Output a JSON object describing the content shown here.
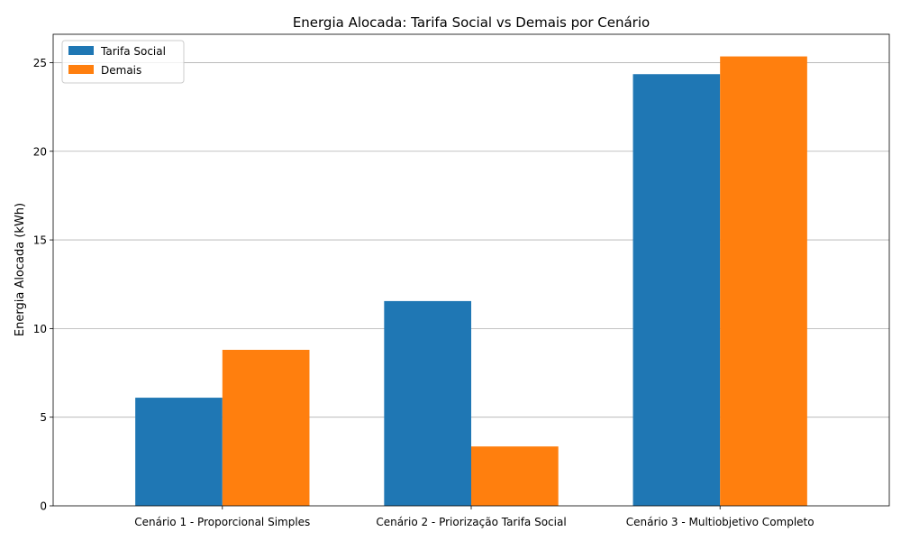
{
  "chart_data": {
    "type": "bar",
    "title": "Energia Alocada: Tarifa Social vs Demais por Cenário",
    "xlabel": "",
    "ylabel": "Energia Alocada (kWh)",
    "categories": [
      "Cenário 1 - Proporcional Simples",
      "Cenário 2 - Priorização Tarifa Social",
      "Cenário 3 - Multiobjetivo Completo"
    ],
    "series": [
      {
        "name": "Tarifa Social",
        "values": [
          6.1,
          11.55,
          24.35
        ],
        "color": "#1f77b4"
      },
      {
        "name": "Demais",
        "values": [
          8.8,
          3.35,
          25.35
        ],
        "color": "#ff7f0e"
      }
    ],
    "ylim": [
      0,
      26.6
    ],
    "yticks": [
      0,
      5,
      10,
      15,
      20,
      25
    ],
    "ytick_labels": [
      "0",
      "5",
      "10",
      "15",
      "20",
      "25"
    ],
    "grid": "y",
    "legend_position": "top-left"
  }
}
